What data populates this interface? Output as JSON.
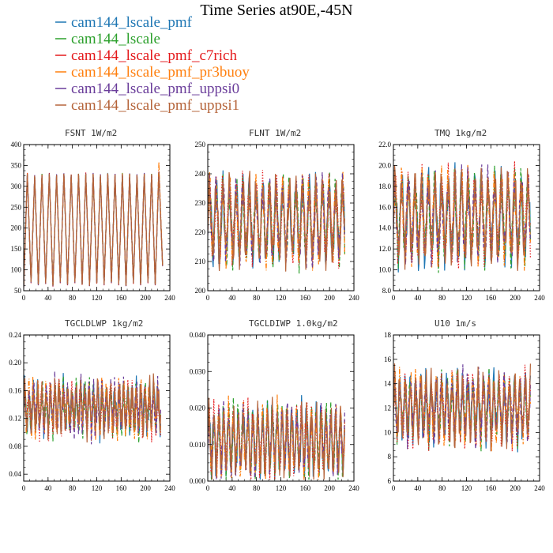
{
  "chart_data": {
    "type": "line",
    "title": "Time Series at90E,-45N",
    "legend_placement": "top-left",
    "grid": false,
    "series_styles": [
      {
        "name": "cam144_lscale_pmf",
        "color": "#1f77b4",
        "dash": "solid"
      },
      {
        "name": "cam144_lscale",
        "color": "#2ca02c",
        "dash": "dashed"
      },
      {
        "name": "cam144_lscale_pmf_c7rich",
        "color": "#e41a1c",
        "dash": "dotted"
      },
      {
        "name": "cam144_lscale_pmf_pr3buoy",
        "color": "#ff7f0e",
        "dash": "dashdot"
      },
      {
        "name": "cam144_lscale_pmf_uppsi0",
        "color": "#6a3d9a",
        "dash": "dashed"
      },
      {
        "name": "cam144_lscale_pmf_uppsi1",
        "color": "#b5643a",
        "dash": "solid"
      }
    ],
    "panels": [
      {
        "title": "FSNT  1W/m2",
        "xlim": [
          0,
          240
        ],
        "xticks": [
          "0",
          "40",
          "80",
          "120",
          "160",
          "200",
          "240"
        ],
        "ylim": [
          50,
          400
        ],
        "yticks": [
          "50",
          "100",
          "150",
          "200",
          "250",
          "300",
          "350",
          "400"
        ],
        "cycles": 19,
        "mean": 195,
        "amplitude": 135,
        "noise": 10,
        "series": [
          {
            "name": "cam144_lscale_pmf",
            "x": [
              0,
              6,
              12,
              18,
              24,
              30,
              36,
              42,
              48,
              54,
              60,
              66,
              72,
              78,
              84,
              90,
              96,
              102,
              108,
              114,
              120,
              126,
              132,
              138,
              144,
              150,
              156,
              162,
              168,
              174,
              180,
              186,
              192,
              198,
              204,
              210,
              216,
              222,
              228
            ],
            "y": [
              60,
              330,
              70,
              325,
              65,
              328,
              68,
              330,
              62,
              325,
              70,
              330,
              65,
              328,
              70,
              330,
              65,
              328,
              62,
              330,
              68,
              325,
              65,
              332,
              70,
              328,
              65,
              330,
              62,
              328,
              68,
              325,
              65,
              330,
              70,
              328,
              65,
              335,
              110
            ]
          },
          {
            "name": "cam144_lscale",
            "x": [
              0,
              6,
              12,
              18,
              24,
              30,
              36,
              42,
              48,
              54,
              60,
              66,
              72,
              78,
              84,
              90,
              96,
              102,
              108,
              114,
              120,
              126,
              132,
              138,
              144,
              150,
              156,
              162,
              168,
              174,
              180,
              186,
              192,
              198,
              204,
              210,
              216,
              222,
              228
            ],
            "y": [
              62,
              328,
              72,
              322,
              66,
              330,
              70,
              328,
              64,
              327,
              72,
              328,
              66,
              326,
              72,
              331,
              66,
              330,
              64,
              328,
              70,
              327,
              66,
              330,
              72,
              326,
              66,
              332,
              64,
              330,
              70,
              327,
              66,
              328,
              72,
              330,
              66,
              333,
              112
            ]
          },
          {
            "name": "cam144_lscale_pmf_c7rich",
            "x": [
              0,
              6,
              12,
              18,
              24,
              30,
              36,
              42,
              48,
              54,
              60,
              66,
              72,
              78,
              84,
              90,
              96,
              102,
              108,
              114,
              120,
              126,
              132,
              138,
              144,
              150,
              156,
              162,
              168,
              174,
              180,
              186,
              192,
              198,
              204,
              210,
              216,
              222,
              228
            ],
            "y": [
              58,
              332,
              68,
              326,
              64,
              327,
              66,
              332,
              60,
              328,
              68,
              331,
              63,
              330,
              68,
              328,
              63,
              333,
              60,
              331,
              66,
              328,
              63,
              330,
              68,
              331,
              63,
              328,
              60,
              330,
              66,
              328,
              63,
              331,
              68,
              327,
              63,
              336,
              108
            ]
          },
          {
            "name": "cam144_lscale_pmf_pr3buoy",
            "x": [
              0,
              6,
              12,
              18,
              24,
              30,
              36,
              42,
              48,
              54,
              60,
              66,
              72,
              78,
              84,
              90,
              96,
              102,
              108,
              114,
              120,
              126,
              132,
              138,
              144,
              150,
              156,
              162,
              168,
              174,
              180,
              186,
              192,
              198,
              204,
              210,
              216,
              222,
              228
            ],
            "y": [
              61,
              331,
              71,
              324,
              67,
              329,
              69,
              329,
              63,
              326,
              71,
              329,
              66,
              327,
              71,
              330,
              66,
              329,
              63,
              329,
              69,
              326,
              66,
              331,
              71,
              327,
              66,
              331,
              63,
              329,
              69,
              326,
              66,
              329,
              71,
              329,
              66,
              358,
              111
            ]
          },
          {
            "name": "cam144_lscale_pmf_uppsi0",
            "x": [
              0,
              6,
              12,
              18,
              24,
              30,
              36,
              42,
              48,
              54,
              60,
              66,
              72,
              78,
              84,
              90,
              96,
              102,
              108,
              114,
              120,
              126,
              132,
              138,
              144,
              150,
              156,
              162,
              168,
              174,
              180,
              186,
              192,
              198,
              204,
              210,
              216,
              222,
              228
            ],
            "y": [
              59,
              329,
              69,
              327,
              63,
              326,
              67,
              331,
              61,
              329,
              69,
              332,
              64,
              329,
              69,
              329,
              64,
              331,
              61,
              332,
              67,
              329,
              64,
              329,
              69,
              330,
              64,
              329,
              61,
              331,
              67,
              329,
              64,
              332,
              69,
              330,
              64,
              334,
              109
            ]
          },
          {
            "name": "cam144_lscale_pmf_uppsi1",
            "x": [
              0,
              6,
              12,
              18,
              24,
              30,
              36,
              42,
              48,
              54,
              60,
              66,
              72,
              78,
              84,
              90,
              96,
              102,
              108,
              114,
              120,
              126,
              132,
              138,
              144,
              150,
              156,
              162,
              168,
              174,
              180,
              186,
              192,
              198,
              204,
              210,
              216,
              222,
              228
            ],
            "y": [
              60,
              330,
              70,
              325,
              65,
              328,
              68,
              330,
              62,
              327,
              70,
              330,
              65,
              328,
              70,
              330,
              65,
              330,
              62,
              330,
              68,
              327,
              65,
              330,
              70,
              328,
              65,
              330,
              62,
              330,
              68,
              327,
              65,
              330,
              70,
              329,
              65,
              333,
              110
            ]
          }
        ]
      },
      {
        "title": "FLNT  1W/m2",
        "xlim": [
          0,
          240
        ],
        "xticks": [
          "0",
          "40",
          "80",
          "120",
          "160",
          "200",
          "240"
        ],
        "ylim": [
          200,
          250
        ],
        "yticks": [
          "200",
          "210",
          "220",
          "230",
          "240",
          "250"
        ],
        "cycles": 22,
        "mean": 224,
        "amplitude": 11,
        "noise": 3
      },
      {
        "title": "TMQ  1kg/m2",
        "xlim": [
          0,
          240
        ],
        "xticks": [
          "0",
          "40",
          "80",
          "120",
          "160",
          "200",
          "240"
        ],
        "ylim": [
          8.0,
          22.0
        ],
        "yticks": [
          "8.0",
          "10.0",
          "12.0",
          "14.0",
          "16.0",
          "18.0",
          "20.0",
          "22.0"
        ],
        "cycles": 22,
        "mean": 15,
        "amplitude": 3.2,
        "noise": 1.0
      },
      {
        "title": "TGCLDLWP  1kg/m2",
        "xlim": [
          0,
          240
        ],
        "xticks": [
          "0",
          "40",
          "80",
          "120",
          "160",
          "200",
          "240"
        ],
        "ylim": [
          0.03,
          0.24
        ],
        "yticks": [
          "0.04",
          "0.08",
          "0.12",
          "0.16",
          "0.20",
          "0.24"
        ],
        "cycles": 34,
        "mean": 0.135,
        "amplitude": 0.025,
        "noise": 0.018
      },
      {
        "title": "TGCLDIWP  1.0kg/m2",
        "xlim": [
          0,
          240
        ],
        "xticks": [
          "0",
          "40",
          "80",
          "120",
          "160",
          "200",
          "240"
        ],
        "ylim": [
          0.0,
          0.04
        ],
        "yticks": [
          "0.000",
          "0.010",
          "0.020",
          "0.030",
          "0.040"
        ],
        "cycles": 30,
        "mean": 0.011,
        "amplitude": 0.007,
        "noise": 0.003
      },
      {
        "title": "U10  1m/s",
        "xlim": [
          0,
          240
        ],
        "xticks": [
          "0",
          "40",
          "80",
          "120",
          "160",
          "200",
          "240"
        ],
        "ylim": [
          6,
          18
        ],
        "yticks": [
          "6",
          "8",
          "10",
          "12",
          "14",
          "16",
          "18"
        ],
        "cycles": 28,
        "mean": 12,
        "amplitude": 2,
        "noise": 1.0
      }
    ]
  }
}
